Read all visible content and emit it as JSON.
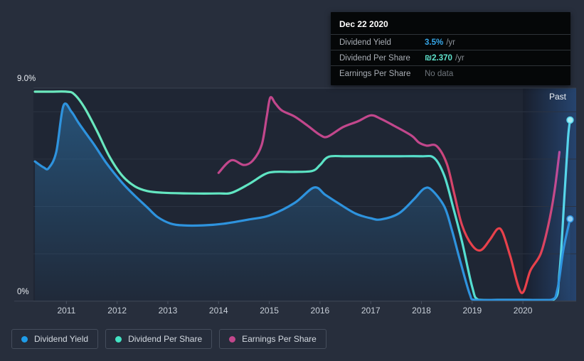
{
  "tooltip": {
    "date": "Dec 22 2020",
    "rows": [
      {
        "label": "Dividend Yield",
        "value": "3.5%",
        "suffix": "/yr",
        "color": "#36a7e9",
        "bold": true
      },
      {
        "label": "Dividend Per Share",
        "value": "₪2.370",
        "suffix": "/yr",
        "color": "#5fe3cd",
        "bold": true
      },
      {
        "label": "Earnings Per Share",
        "value": "No data",
        "suffix": "",
        "color": "#6f757c",
        "bold": false
      }
    ]
  },
  "axis": {
    "y_top_label": "9.0%",
    "y_bottom_label": "0%",
    "years": [
      "2011",
      "2012",
      "2013",
      "2014",
      "2015",
      "2016",
      "2017",
      "2018",
      "2019",
      "2020"
    ]
  },
  "past_band": {
    "label": "Past",
    "start_year": 2020.0
  },
  "legend": [
    {
      "label": "Dividend Yield",
      "color": "#1e9ce9"
    },
    {
      "label": "Dividend Per Share",
      "color": "#43e3c3"
    },
    {
      "label": "Earnings Per Share",
      "color": "#c2478c"
    }
  ],
  "colors": {
    "page_bg": "#272e3c",
    "plot_bg": "#1f2634",
    "grid": "#2b3342",
    "grid_strong": "#3a4250",
    "yield_line": "#2e93de",
    "dps_mint": "#6ce9bd",
    "dps_cyan": "#57d3ef",
    "eps_magenta": "#c2478c",
    "eps_red": "#e8414b",
    "fill_blue": "#2e7cb8"
  },
  "chart_data": {
    "type": "line",
    "title": "Dividend history chart",
    "xlabel": "",
    "ylabel": "",
    "units": "%",
    "xlim": [
      2010.35,
      2021.05
    ],
    "ylim": [
      0,
      9
    ],
    "y_gridlines": [
      {
        "v": 9,
        "strong": true
      },
      {
        "v": 8,
        "strong": false
      },
      {
        "v": 6,
        "strong": false
      },
      {
        "v": 4,
        "strong": false
      },
      {
        "v": 2,
        "strong": false
      },
      {
        "v": 0,
        "strong": true
      }
    ],
    "legend_position": "bottom-left",
    "series": [
      {
        "name": "Dividend Yield",
        "style": "solid",
        "color": "#2e93de",
        "fill": true,
        "end_dot": {
          "fill": "#8ecdf4",
          "stroke": "#2e93de"
        },
        "points": [
          [
            2010.38,
            5.9
          ],
          [
            2010.55,
            5.65
          ],
          [
            2010.65,
            5.62
          ],
          [
            2010.8,
            6.3
          ],
          [
            2010.94,
            8.25
          ],
          [
            2011.1,
            8.0
          ],
          [
            2011.25,
            7.5
          ],
          [
            2011.55,
            6.6
          ],
          [
            2011.8,
            5.8
          ],
          [
            2012.1,
            5.0
          ],
          [
            2012.35,
            4.45
          ],
          [
            2012.6,
            3.95
          ],
          [
            2012.8,
            3.55
          ],
          [
            2013.05,
            3.28
          ],
          [
            2013.3,
            3.2
          ],
          [
            2013.7,
            3.2
          ],
          [
            2014.1,
            3.27
          ],
          [
            2014.6,
            3.45
          ],
          [
            2015.0,
            3.62
          ],
          [
            2015.5,
            4.15
          ],
          [
            2015.88,
            4.8
          ],
          [
            2016.1,
            4.5
          ],
          [
            2016.35,
            4.15
          ],
          [
            2016.7,
            3.7
          ],
          [
            2017.0,
            3.5
          ],
          [
            2017.2,
            3.45
          ],
          [
            2017.55,
            3.7
          ],
          [
            2017.85,
            4.3
          ],
          [
            2018.05,
            4.75
          ],
          [
            2018.2,
            4.7
          ],
          [
            2018.45,
            4.0
          ],
          [
            2018.6,
            3.0
          ],
          [
            2018.75,
            1.8
          ],
          [
            2018.95,
            0.3
          ],
          [
            2019.05,
            0.05
          ],
          [
            2019.5,
            0.05
          ],
          [
            2020.0,
            0.05
          ],
          [
            2020.55,
            0.05
          ],
          [
            2020.68,
            0.5
          ],
          [
            2020.8,
            2.2
          ],
          [
            2020.93,
            3.47
          ]
        ]
      },
      {
        "name": "Dividend Per Share",
        "style": "gradient-x",
        "gradient_stops": [
          {
            "offset": 0.0,
            "color": "#6ce9bd"
          },
          {
            "offset": 0.55,
            "color": "#5be3c5"
          },
          {
            "offset": 0.9,
            "color": "#52dcd5"
          },
          {
            "offset": 1.0,
            "color": "#57d3ef"
          }
        ],
        "fill": false,
        "end_dot": {
          "fill": "#a6ebf2",
          "stroke": "#55d4ea"
        },
        "points": [
          [
            2010.38,
            8.85
          ],
          [
            2010.7,
            8.85
          ],
          [
            2011.0,
            8.85
          ],
          [
            2011.15,
            8.75
          ],
          [
            2011.35,
            8.2
          ],
          [
            2011.6,
            7.2
          ],
          [
            2011.85,
            6.1
          ],
          [
            2012.1,
            5.3
          ],
          [
            2012.35,
            4.85
          ],
          [
            2012.6,
            4.65
          ],
          [
            2012.9,
            4.58
          ],
          [
            2013.4,
            4.55
          ],
          [
            2014.0,
            4.55
          ],
          [
            2014.26,
            4.58
          ],
          [
            2014.6,
            4.95
          ],
          [
            2014.9,
            5.35
          ],
          [
            2015.1,
            5.46
          ],
          [
            2015.5,
            5.46
          ],
          [
            2015.85,
            5.5
          ],
          [
            2016.0,
            5.75
          ],
          [
            2016.17,
            6.1
          ],
          [
            2016.5,
            6.12
          ],
          [
            2017.0,
            6.12
          ],
          [
            2017.5,
            6.12
          ],
          [
            2018.0,
            6.12
          ],
          [
            2018.25,
            6.05
          ],
          [
            2018.45,
            5.3
          ],
          [
            2018.62,
            4.0
          ],
          [
            2018.8,
            2.5
          ],
          [
            2019.0,
            0.6
          ],
          [
            2019.12,
            0.06
          ],
          [
            2019.5,
            0.05
          ],
          [
            2020.0,
            0.05
          ],
          [
            2020.6,
            0.05
          ],
          [
            2020.72,
            1.2
          ],
          [
            2020.82,
            4.5
          ],
          [
            2020.89,
            6.9
          ],
          [
            2020.93,
            7.65
          ]
        ]
      },
      {
        "name": "Earnings Per Share",
        "style": "gradient-x",
        "gradient_stops": [
          {
            "offset": 0.0,
            "color": "#c2478c"
          },
          {
            "offset": 0.74,
            "color": "#c2478c"
          },
          {
            "offset": 0.8,
            "color": "#e8414b"
          },
          {
            "offset": 0.93,
            "color": "#e8414b"
          },
          {
            "offset": 0.975,
            "color": "#b14fae"
          }
        ],
        "fill": false,
        "end_dot": null,
        "points": [
          [
            2014.0,
            5.42
          ],
          [
            2014.25,
            5.95
          ],
          [
            2014.5,
            5.75
          ],
          [
            2014.68,
            5.95
          ],
          [
            2014.85,
            6.6
          ],
          [
            2014.95,
            7.8
          ],
          [
            2015.02,
            8.6
          ],
          [
            2015.12,
            8.35
          ],
          [
            2015.25,
            8.05
          ],
          [
            2015.5,
            7.8
          ],
          [
            2015.75,
            7.42
          ],
          [
            2016.0,
            7.02
          ],
          [
            2016.15,
            6.95
          ],
          [
            2016.45,
            7.35
          ],
          [
            2016.75,
            7.6
          ],
          [
            2017.0,
            7.85
          ],
          [
            2017.2,
            7.7
          ],
          [
            2017.45,
            7.42
          ],
          [
            2017.8,
            7.0
          ],
          [
            2017.95,
            6.7
          ],
          [
            2018.1,
            6.57
          ],
          [
            2018.3,
            6.55
          ],
          [
            2018.5,
            5.8
          ],
          [
            2018.65,
            4.5
          ],
          [
            2018.8,
            3.2
          ],
          [
            2019.0,
            2.35
          ],
          [
            2019.17,
            2.15
          ],
          [
            2019.35,
            2.6
          ],
          [
            2019.5,
            3.05
          ],
          [
            2019.6,
            2.9
          ],
          [
            2019.75,
            1.9
          ],
          [
            2019.97,
            0.35
          ],
          [
            2020.15,
            1.3
          ],
          [
            2020.35,
            2.0
          ],
          [
            2020.5,
            3.2
          ],
          [
            2020.62,
            4.6
          ],
          [
            2020.72,
            6.3
          ]
        ]
      }
    ]
  }
}
